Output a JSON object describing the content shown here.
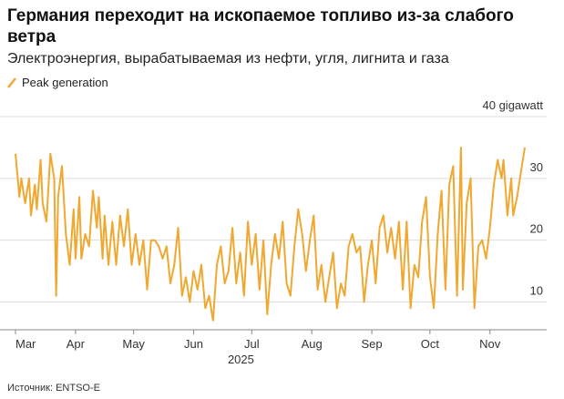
{
  "chart_data": {
    "type": "line",
    "title": "Германия переходит на ископаемое топливо из-за слабого ветра",
    "subtitle": "Электроэнергия, вырабатываемая из нефти, угля, лигнита и газа",
    "source": "Источник: ENTSO-E",
    "x_label": "2025",
    "xlim": [
      0,
      263
    ],
    "xticks": [
      {
        "value": 0,
        "label": "Mar"
      },
      {
        "value": 31,
        "label": "Apr"
      },
      {
        "value": 61,
        "label": "May"
      },
      {
        "value": 92,
        "label": "Jun"
      },
      {
        "value": 122,
        "label": "Jul"
      },
      {
        "value": 153,
        "label": "Aug"
      },
      {
        "value": 184,
        "label": "Sep"
      },
      {
        "value": 214,
        "label": "Oct"
      },
      {
        "value": 245,
        "label": "Nov"
      }
    ],
    "ylim": [
      5.5,
      40
    ],
    "yticks": [
      10,
      20,
      30,
      {
        "value": 40,
        "label": "40 gigawatt"
      }
    ],
    "grid": true,
    "series": [
      {
        "name": "Peak generation",
        "color": "#f0a830",
        "x": [
          0,
          2,
          3,
          5,
          7,
          8,
          10,
          11,
          13,
          14,
          16,
          18,
          20,
          21,
          22,
          24,
          26,
          28,
          30,
          31,
          33,
          34,
          36,
          38,
          40,
          42,
          43,
          45,
          46,
          48,
          50,
          52,
          54,
          56,
          58,
          60,
          62,
          64,
          66,
          68,
          70,
          72,
          74,
          76,
          78,
          80,
          82,
          84,
          86,
          88,
          90,
          92,
          94,
          96,
          98,
          100,
          102,
          104,
          106,
          108,
          110,
          112,
          114,
          116,
          118,
          120,
          122,
          124,
          126,
          128,
          130,
          132,
          134,
          136,
          138,
          140,
          142,
          144,
          146,
          148,
          150,
          152,
          154,
          156,
          158,
          160,
          162,
          164,
          166,
          168,
          170,
          172,
          174,
          176,
          178,
          180,
          182,
          184,
          186,
          188,
          190,
          192,
          194,
          196,
          198,
          200,
          202,
          204,
          206,
          208,
          210,
          212,
          214,
          216,
          218,
          220,
          222,
          224,
          226,
          228,
          230,
          231,
          233,
          235,
          237,
          239,
          241,
          243,
          245,
          247,
          249,
          251,
          252,
          254,
          256,
          257,
          259,
          261,
          263
        ],
        "values": [
          34,
          27,
          30,
          26,
          30,
          24,
          29,
          25,
          33,
          26,
          23,
          34,
          30,
          11,
          27,
          32,
          21,
          16,
          25,
          17,
          27,
          17,
          21,
          19,
          28,
          22,
          27,
          17,
          24,
          16,
          23,
          16,
          24,
          19,
          25,
          16,
          21,
          16,
          20,
          12,
          20,
          20,
          19,
          17,
          19,
          13,
          16,
          22,
          11,
          14,
          10,
          15,
          12,
          16,
          9,
          11,
          7,
          16,
          19,
          13,
          15,
          22,
          13,
          18,
          11,
          23,
          16,
          21,
          12,
          20,
          8,
          16,
          21,
          17,
          23,
          13,
          11,
          19,
          25,
          21,
          15,
          20,
          24,
          12,
          16,
          10,
          14,
          18,
          9,
          13,
          11,
          19,
          21,
          18,
          19,
          10,
          16,
          20,
          13,
          22,
          24,
          18,
          22,
          17,
          23,
          12,
          23,
          9,
          16,
          14,
          23,
          27,
          14,
          9,
          21,
          28,
          12,
          29,
          32,
          11,
          35,
          12,
          26,
          30,
          9,
          19,
          20,
          17,
          22,
          29,
          33,
          30,
          33,
          24,
          30,
          24,
          27,
          31,
          35
        ]
      }
    ]
  }
}
